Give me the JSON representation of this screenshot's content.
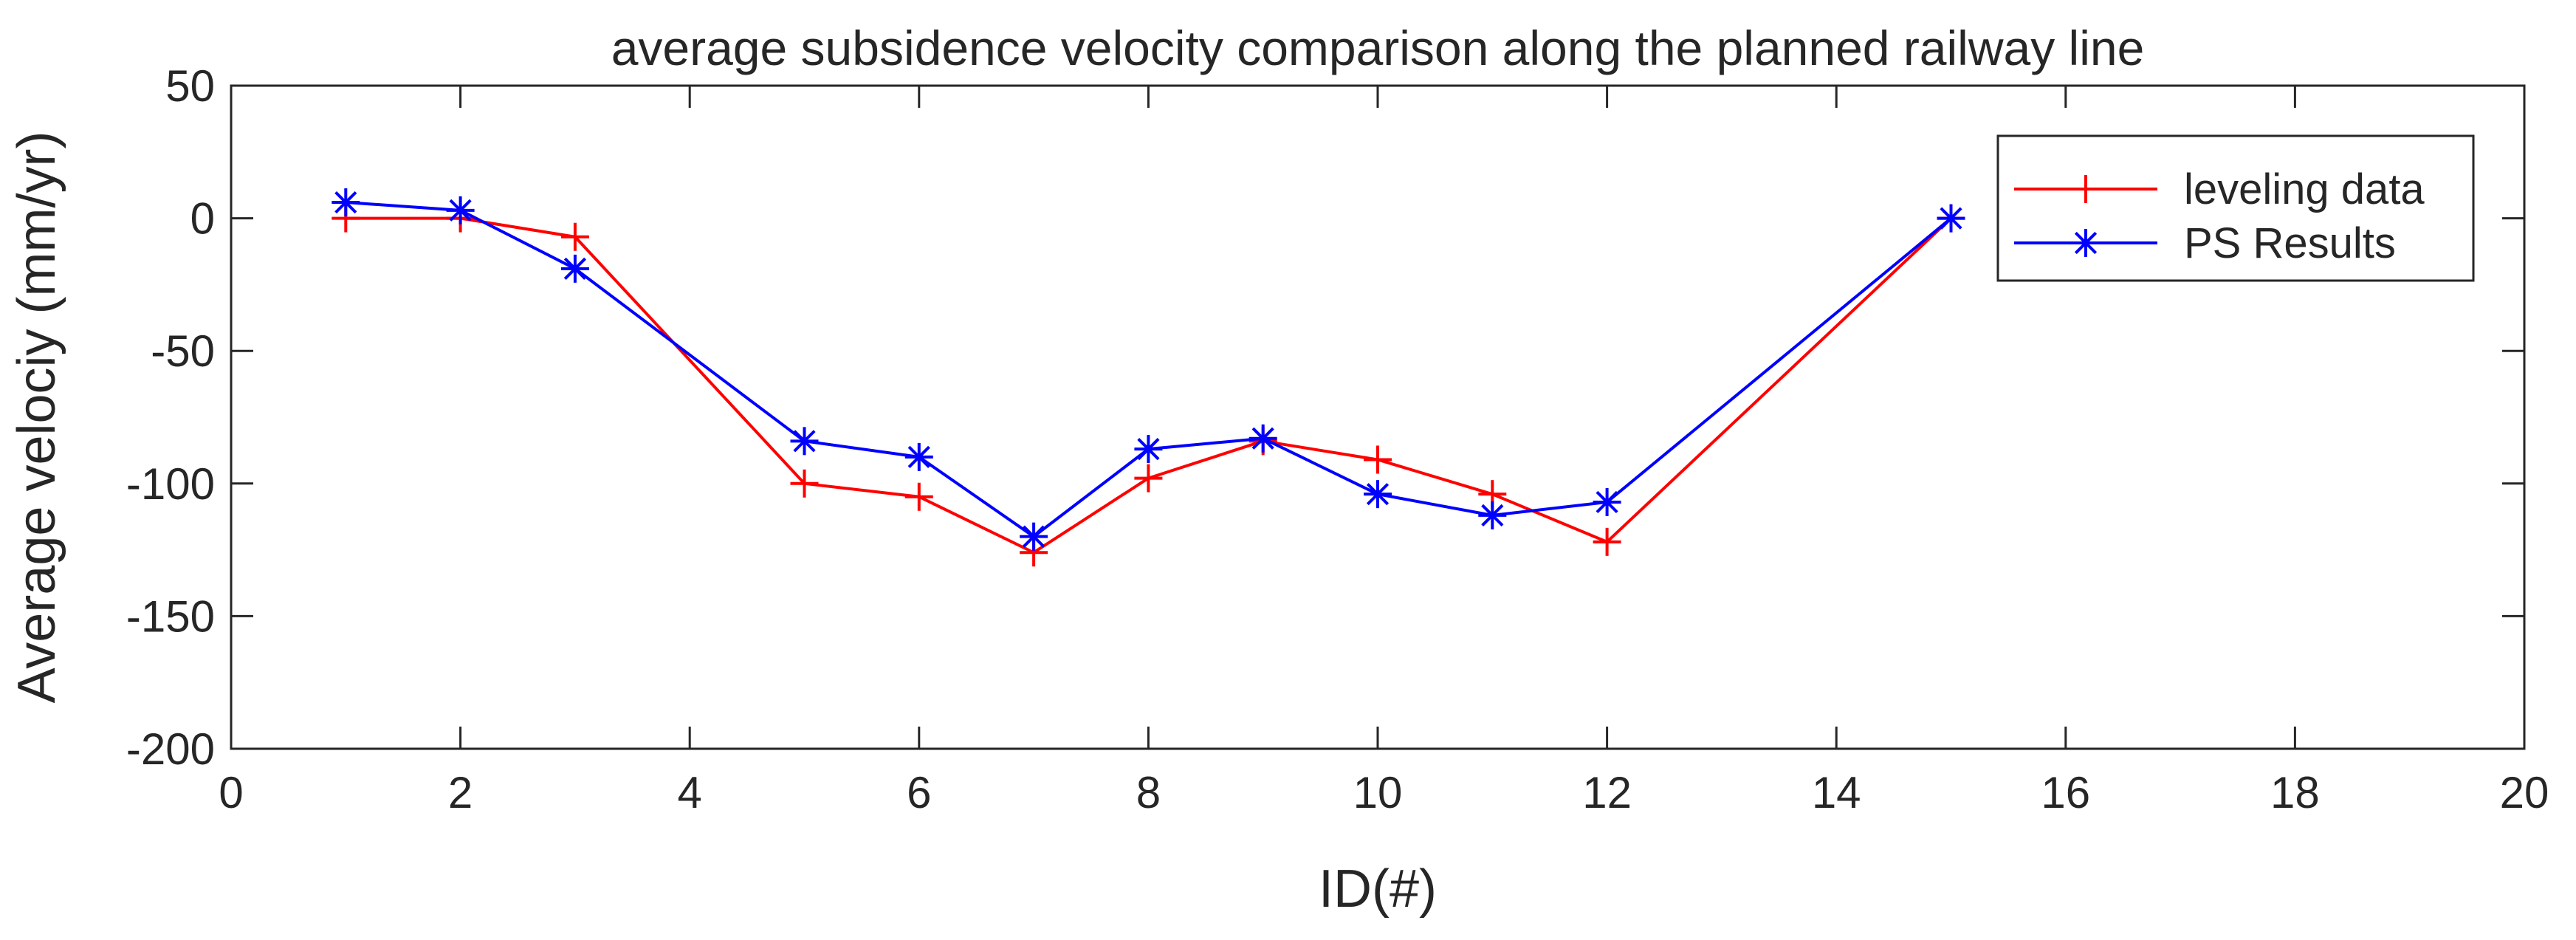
{
  "chart_data": {
    "type": "line",
    "title": "average subsidence velocity comparison along the planned railway line",
    "xlabel": "ID(#)",
    "ylabel": "Average velociy (mm/yr)",
    "xlim": [
      0,
      20
    ],
    "ylim": [
      -200,
      50
    ],
    "xticks": [
      0,
      2,
      4,
      6,
      8,
      10,
      12,
      14,
      16,
      18,
      20
    ],
    "yticks": [
      50,
      0,
      -50,
      -100,
      -150,
      -200
    ],
    "grid": false,
    "legend_position": "top-right",
    "series": [
      {
        "name": "leveling data",
        "color": "#ff0000",
        "marker": "plus",
        "x": [
          1,
          2,
          3,
          5,
          6,
          7,
          8,
          9,
          10,
          11,
          12,
          15
        ],
        "y": [
          0,
          0,
          -7,
          -100,
          -105,
          -126,
          -98,
          -84,
          -91,
          -104,
          -122,
          0
        ]
      },
      {
        "name": "PS Results",
        "color": "#0000ff",
        "marker": "asterisk",
        "x": [
          1,
          2,
          3,
          5,
          6,
          7,
          8,
          9,
          10,
          11,
          12,
          15
        ],
        "y": [
          6,
          3,
          -19,
          -84,
          -90,
          -120,
          -87,
          -83,
          -104,
          -112,
          -107,
          0
        ]
      }
    ]
  }
}
